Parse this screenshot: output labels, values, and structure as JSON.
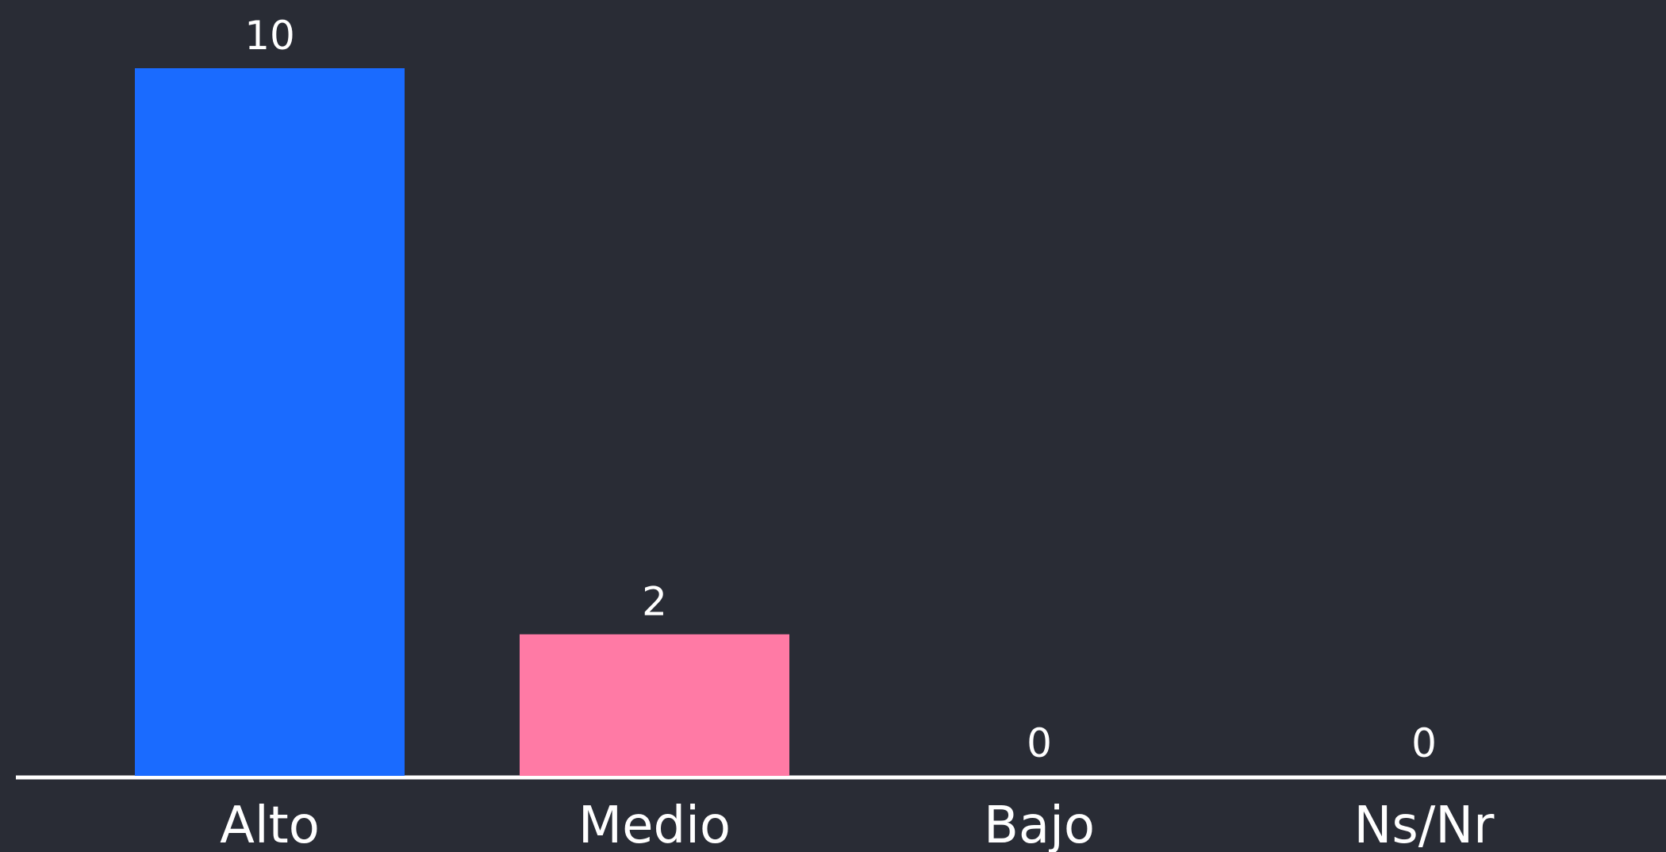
{
  "chart_data": {
    "type": "bar",
    "categories": [
      "Alto",
      "Medio",
      "Bajo",
      "Ns/Nr"
    ],
    "values": [
      10,
      2,
      0,
      0
    ],
    "data_labels": [
      "10",
      "2",
      "0",
      "0"
    ],
    "colors": [
      "#1a6bff",
      "#ff7aa5",
      "#ff7aa5",
      "#ff7aa5"
    ],
    "background_color": "#292c35",
    "axis_color": "#ffffff",
    "ylim": [
      0,
      10
    ],
    "grid": false,
    "legend": "none"
  }
}
